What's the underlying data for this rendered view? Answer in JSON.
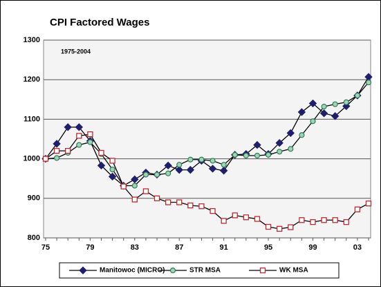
{
  "chart_data": {
    "type": "line",
    "title": "CPI Factored Wages",
    "annotation": "1975-2004",
    "categories": [
      "75",
      null,
      null,
      null,
      "79",
      null,
      null,
      null,
      "83",
      null,
      null,
      null,
      "87",
      null,
      null,
      null,
      "91",
      null,
      null,
      null,
      "95",
      null,
      null,
      null,
      "99",
      null,
      null,
      null,
      "03",
      null
    ],
    "series": [
      {
        "name": "Manitowoc (MICRO)",
        "color": "#1f1f6e",
        "marker": "diamond",
        "values": [
          1000,
          1038,
          1080,
          1080,
          1045,
          983,
          955,
          932,
          948,
          965,
          960,
          983,
          972,
          972,
          995,
          975,
          970,
          1010,
          1012,
          1035,
          1012,
          1040,
          1065,
          1118,
          1140,
          1115,
          1108,
          1133,
          1160,
          1207
        ]
      },
      {
        "name": "STR MSA",
        "color": "#2e7d57",
        "marker": "circle",
        "values": [
          1000,
          1002,
          1015,
          1035,
          1042,
          1012,
          973,
          932,
          932,
          960,
          960,
          963,
          985,
          998,
          998,
          995,
          985,
          1010,
          1008,
          1008,
          1010,
          1018,
          1025,
          1060,
          1095,
          1132,
          1138,
          1143,
          1160,
          1193
        ]
      },
      {
        "name": "WK MSA",
        "color": "#c0282d",
        "marker": "square",
        "values": [
          1000,
          1020,
          1020,
          1058,
          1062,
          1015,
          995,
          930,
          897,
          918,
          900,
          890,
          890,
          882,
          880,
          868,
          843,
          857,
          852,
          848,
          828,
          823,
          827,
          845,
          840,
          845,
          845,
          840,
          872,
          887
        ]
      }
    ],
    "ylim": [
      800,
      1300
    ],
    "yticks": [
      800,
      900,
      1000,
      1100,
      1200,
      1300
    ],
    "grid": true,
    "legend": "bottom"
  }
}
